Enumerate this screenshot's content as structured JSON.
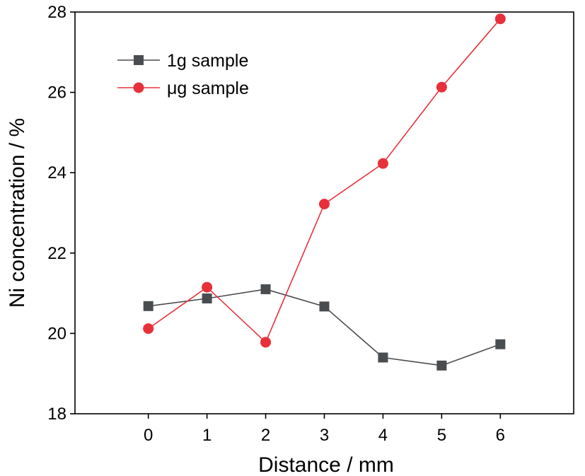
{
  "chart_data": {
    "type": "line",
    "x": [
      0,
      1,
      2,
      3,
      4,
      5,
      6
    ],
    "xlabel": "Distance / mm",
    "ylabel": "Ni concentration / %",
    "xlim": [
      -1.25,
      7.25
    ],
    "ylim": [
      18,
      28
    ],
    "xticks": [
      0,
      1,
      2,
      3,
      4,
      5,
      6
    ],
    "yticks": [
      18,
      20,
      22,
      24,
      26,
      28
    ],
    "grid": false,
    "legend_position": "top-left",
    "series": [
      {
        "name": "1g sample",
        "color": "#4a4d50",
        "marker": "square",
        "values": [
          20.68,
          20.87,
          21.1,
          20.67,
          19.4,
          19.2,
          19.73
        ]
      },
      {
        "name": "μg sample",
        "color": "#e8303a",
        "marker": "circle",
        "values": [
          20.12,
          21.15,
          19.78,
          23.22,
          24.23,
          26.13,
          27.83
        ]
      }
    ]
  }
}
